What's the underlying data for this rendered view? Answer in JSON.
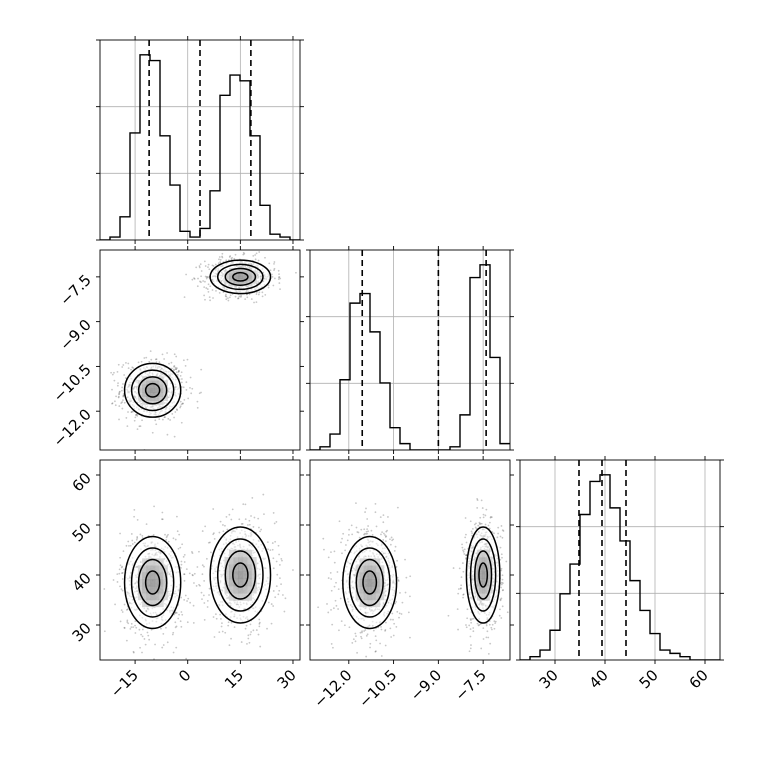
{
  "chart_data": {
    "type": "corner",
    "style": {
      "hist_color": "#000000",
      "grid_color": "#b0b0b0",
      "density_dark": "#000000",
      "density_light": "#ffffff"
    },
    "params": [
      {
        "range": [
          -25,
          32
        ],
        "ticks": [
          -15,
          0,
          15,
          30
        ],
        "tick_labels": [
          "−15",
          "0",
          "15",
          "30"
        ],
        "quantiles": [
          -11,
          3.5,
          18
        ]
      },
      {
        "range": [
          -13.3,
          -6.6
        ],
        "ticks": [
          -12,
          -10.5,
          -9,
          -7.5
        ],
        "tick_labels": [
          "−12.0",
          "−10.5",
          "−9.0",
          "−7.5"
        ],
        "quantiles": [
          -11.55,
          -9.0,
          -7.4
        ]
      },
      {
        "range": [
          23,
          63
        ],
        "ticks": [
          30,
          40,
          50,
          60
        ],
        "tick_labels": [
          "30",
          "40",
          "50",
          "60"
        ],
        "quantiles": [
          34.8,
          39.4,
          44.2
        ]
      }
    ],
    "histograms": [
      {
        "edges": [
          -25,
          -22.15,
          -19.3,
          -16.45,
          -13.6,
          -10.75,
          -7.9,
          -5.05,
          -2.2,
          0.65,
          3.5,
          6.35,
          9.2,
          12.05,
          14.9,
          17.75,
          20.6,
          23.45,
          26.3,
          29.15,
          32
        ],
        "counts": [
          0,
          1,
          8,
          37,
          64,
          62,
          36,
          19,
          3,
          1,
          4,
          17,
          50,
          57,
          55,
          36,
          12,
          2,
          1,
          0
        ]
      },
      {
        "edges": [
          -13.3,
          -12.965,
          -12.63,
          -12.295,
          -11.96,
          -11.625,
          -11.29,
          -10.955,
          -10.62,
          -10.285,
          -9.95,
          -9.615,
          -9.28,
          -8.945,
          -8.61,
          -8.275,
          -7.94,
          -7.605,
          -7.27,
          -6.935,
          -6.6
        ],
        "counts": [
          0,
          1,
          5,
          22,
          46,
          49,
          37,
          21,
          7,
          2,
          0,
          0,
          0,
          0,
          1,
          11,
          54,
          58,
          29,
          2
        ]
      },
      {
        "edges": [
          23,
          25,
          27,
          29,
          31,
          33,
          35,
          37,
          39,
          41,
          43,
          45,
          47,
          49,
          51,
          53,
          55,
          57,
          59,
          61,
          63
        ],
        "counts": [
          0,
          1,
          3,
          9,
          20,
          29,
          44,
          54,
          56,
          46,
          36,
          24,
          15,
          8,
          3,
          2,
          1,
          0,
          0,
          0
        ]
      }
    ],
    "clusters": [
      {
        "mean": [
          -10,
          -11.3,
          38.5
        ],
        "sd": [
          4.0,
          0.45,
          4.6
        ]
      },
      {
        "mean": [
          15,
          -7.5,
          40
        ],
        "sd": [
          4.3,
          0.28,
          4.8
        ]
      }
    ]
  }
}
